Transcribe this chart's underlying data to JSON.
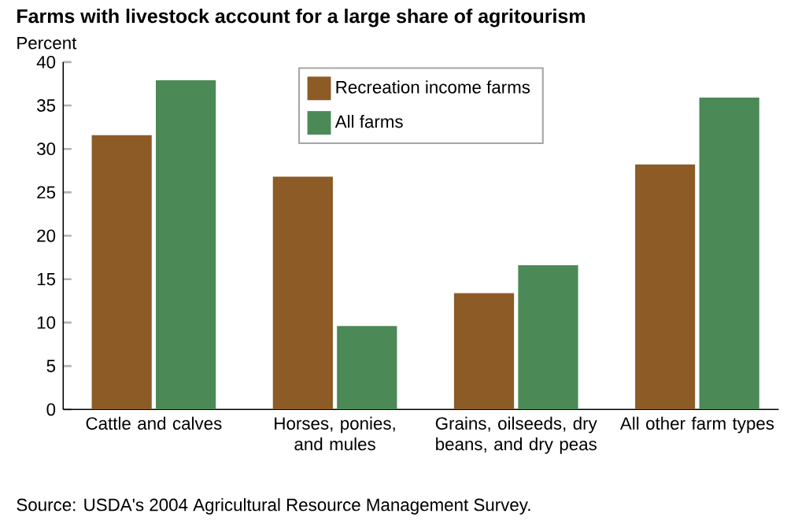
{
  "chart_data": {
    "type": "bar",
    "title": "Farms with livestock account for a large share of agritourism",
    "ylabel": "Percent",
    "categories": [
      "Cattle and calves",
      "Horses, ponies, and mules",
      "Grains, oilseeds, dry beans, and dry peas",
      "All other farm types"
    ],
    "series": [
      {
        "name": "Recreation income farms",
        "color": "#8c5b26",
        "values": [
          31.6,
          26.8,
          13.4,
          28.2
        ]
      },
      {
        "name": "All farms",
        "color": "#4b8956",
        "values": [
          37.9,
          9.6,
          16.6,
          35.9
        ]
      }
    ],
    "ylim": [
      0,
      40
    ],
    "yticks": [
      0,
      5,
      10,
      15,
      20,
      25,
      30,
      35,
      40
    ],
    "legend": "top",
    "grid": false,
    "annotations": [
      "Source: USDA's 2004 Agricultural Resource Management Survey."
    ]
  }
}
